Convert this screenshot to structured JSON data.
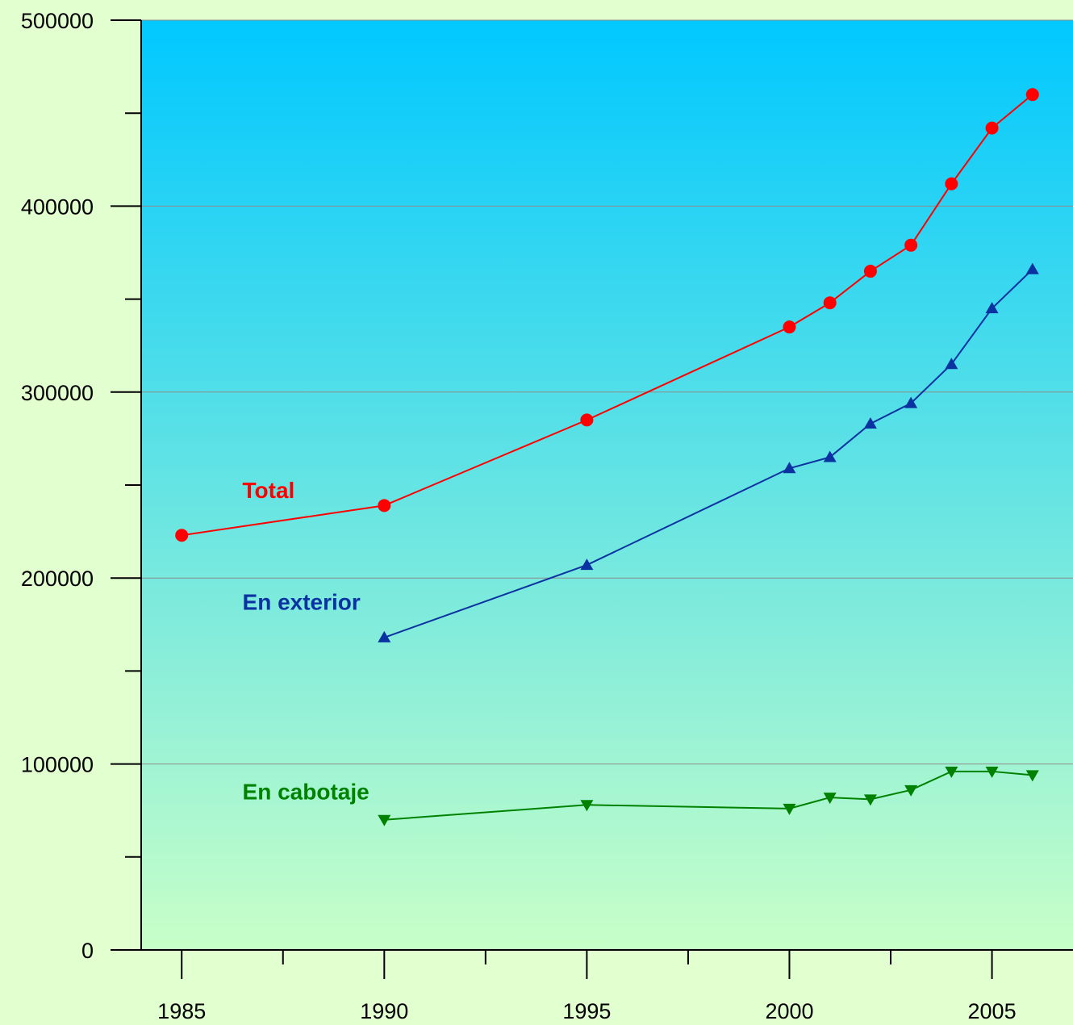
{
  "chart_data": {
    "type": "line",
    "title": "",
    "xlabel": "",
    "ylabel": "",
    "xlim": [
      1984,
      2007
    ],
    "ylim": [
      0,
      500000
    ],
    "x_ticks": [
      1985,
      1990,
      1995,
      2000,
      2005
    ],
    "x_minor_ticks": [
      1987.5,
      1992.5,
      1997.5,
      2002.5
    ],
    "y_ticks": [
      0,
      100000,
      200000,
      300000,
      400000,
      500000
    ],
    "y_minor_ticks": [
      50000,
      150000,
      250000,
      350000,
      450000
    ],
    "x_tick_labels": [
      "1985",
      "1990",
      "1995",
      "2000",
      "2005"
    ],
    "y_tick_labels": [
      "0",
      "100000",
      "200000",
      "300000",
      "400000",
      "500000"
    ],
    "grid": true,
    "background_gradient": [
      "#00c8ff",
      "#c8ffc8"
    ],
    "series": [
      {
        "name": "Total",
        "color": "#ff0000",
        "marker": "circle",
        "label_position": [
          1986.5,
          243000
        ],
        "x": [
          1985,
          1990,
          1995,
          2000,
          2001,
          2002,
          2003,
          2004,
          2005,
          2006
        ],
        "y": [
          223000,
          239000,
          285000,
          335000,
          348000,
          365000,
          379000,
          412000,
          442000,
          460000
        ]
      },
      {
        "name": "En exterior",
        "color": "#0a32a0",
        "marker": "triangle-up",
        "label_position": [
          1986.5,
          183000
        ],
        "x": [
          1990,
          1995,
          2000,
          2001,
          2002,
          2003,
          2004,
          2005,
          2006
        ],
        "y": [
          168000,
          207000,
          259000,
          265000,
          283000,
          294000,
          315000,
          345000,
          366000
        ]
      },
      {
        "name": "En cabotaje",
        "color": "#008200",
        "marker": "triangle-down",
        "label_position": [
          1986.5,
          81000
        ],
        "x": [
          1990,
          1995,
          2000,
          2001,
          2002,
          2003,
          2004,
          2005,
          2006
        ],
        "y": [
          70000,
          78000,
          76000,
          82000,
          81000,
          86000,
          96000,
          96000,
          94000
        ]
      }
    ]
  }
}
